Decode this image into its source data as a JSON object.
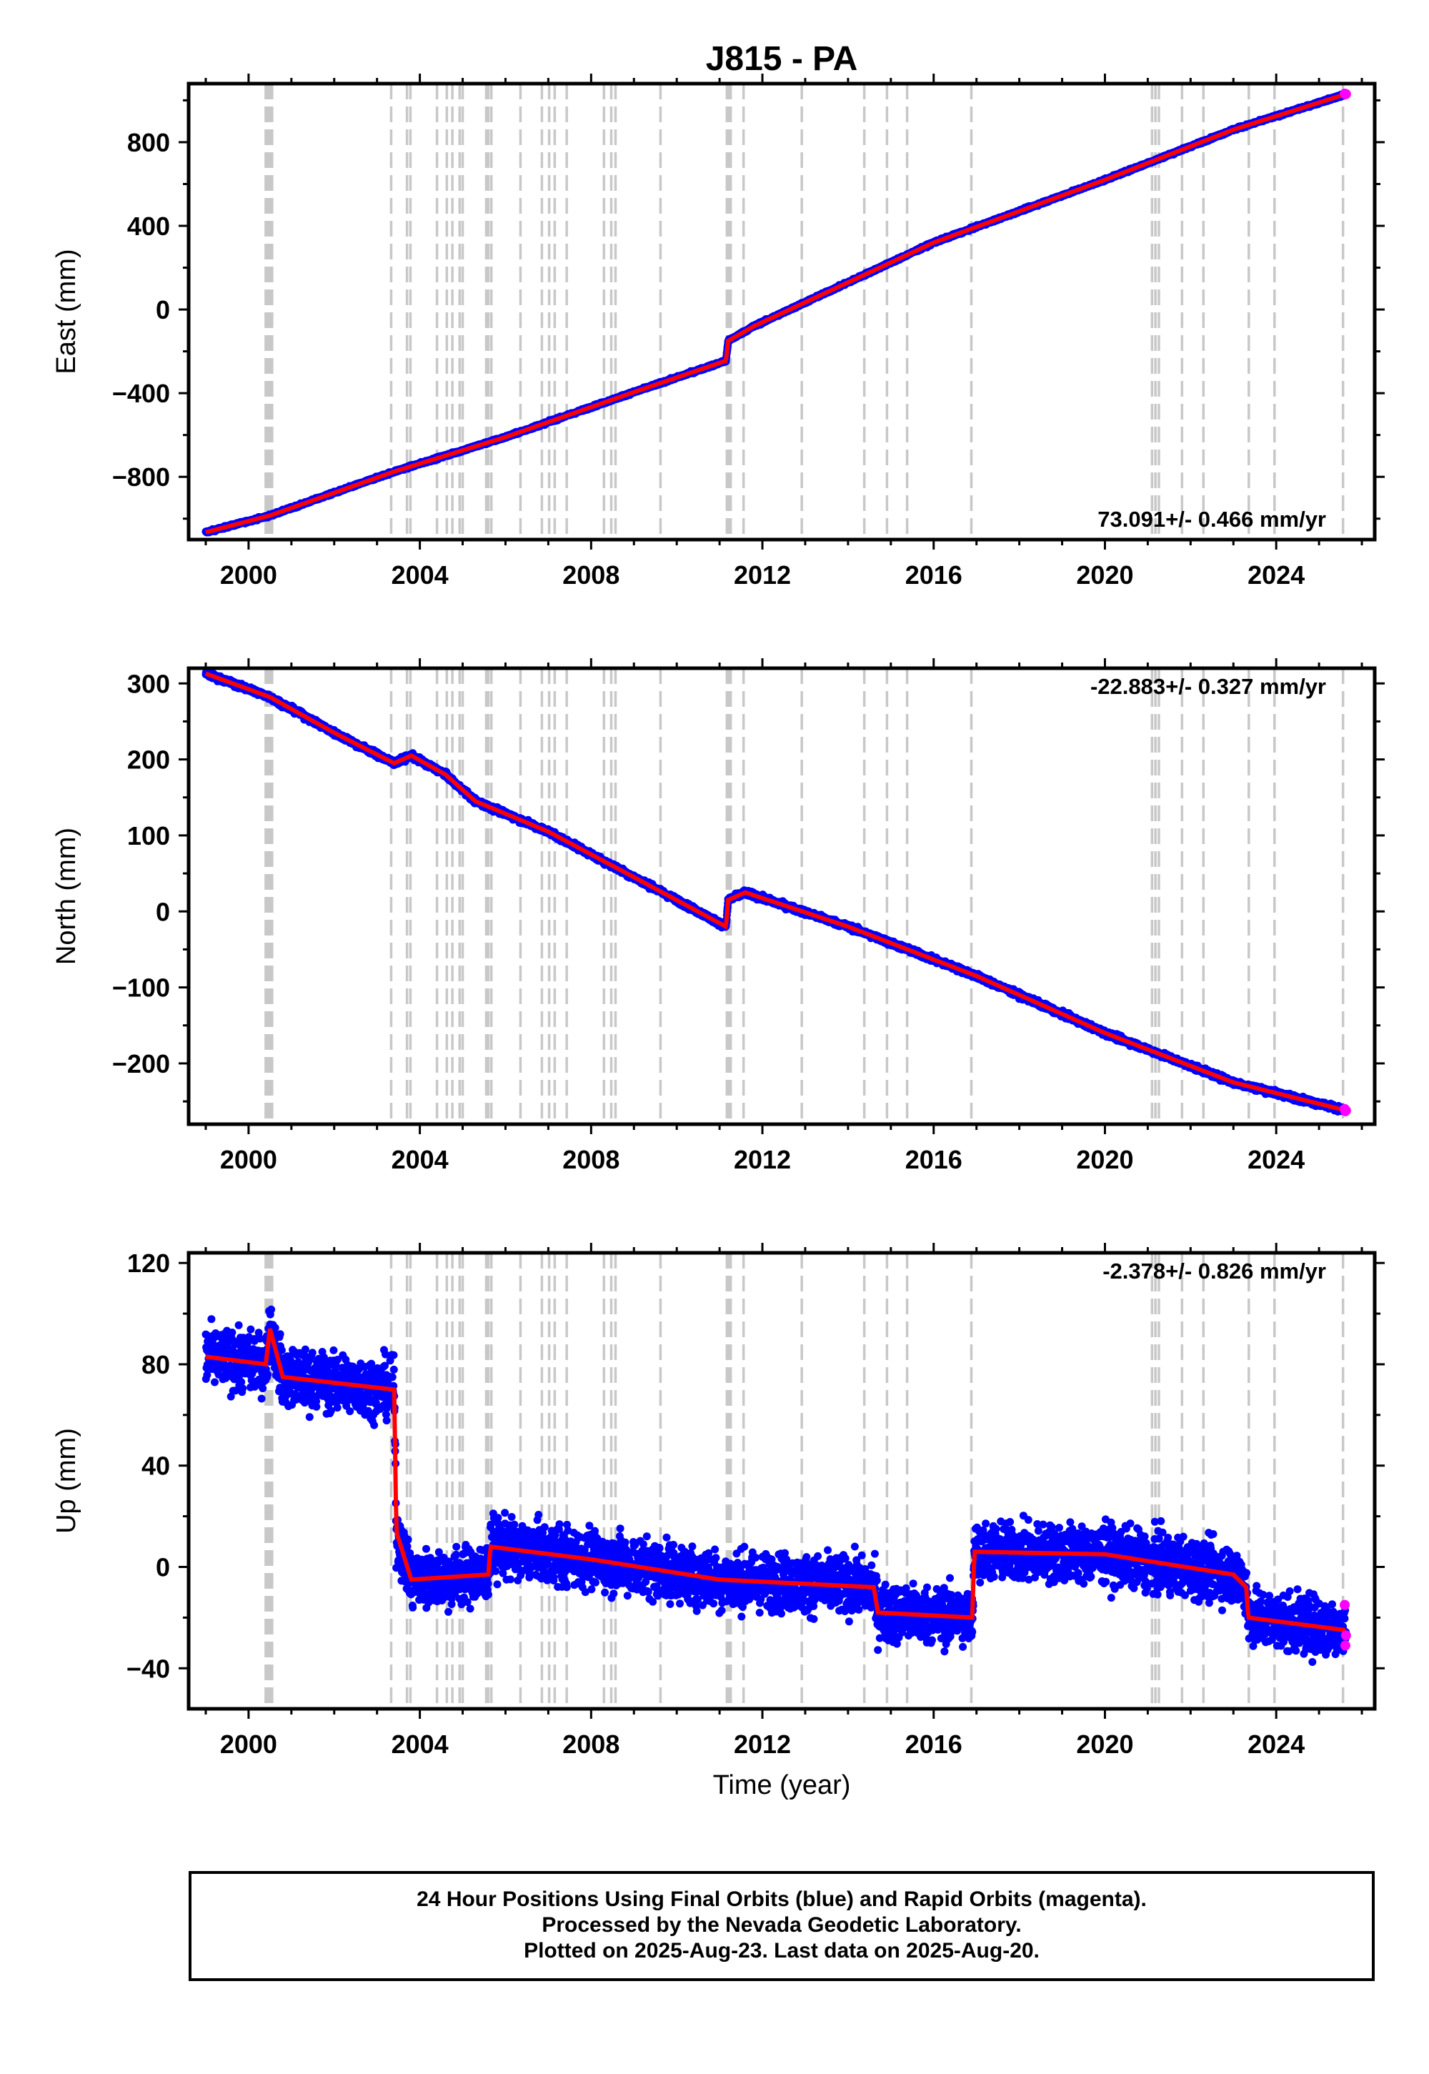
{
  "title": "J815 - PA",
  "xlabel": "Time (year)",
  "colors": {
    "final": "#0000ff",
    "rapid": "#ff00ff",
    "model": "#ff0000",
    "steps": "#c8c8c8"
  },
  "caption": [
    "24 Hour Positions Using Final Orbits (blue) and Rapid Orbits (magenta).",
    "Processed by the Nevada Geodetic Laboratory.",
    "Plotted on 2025-Aug-23. Last data on 2025-Aug-20."
  ],
  "chart_data": [
    {
      "type": "scatter",
      "ylabel": "East (mm)",
      "rate_text": "73.091+/- 0.466 mm/yr",
      "rate_position": "bottom-right",
      "xlim": [
        1998.6,
        2026.3
      ],
      "ylim": [
        -1100,
        1080
      ],
      "xticks": [
        2000,
        2004,
        2008,
        2012,
        2016,
        2020,
        2024
      ],
      "yticks": [
        -800,
        -400,
        0,
        400,
        800
      ],
      "series": [
        {
          "values": [
            [
              1999.0,
              -1065
            ],
            [
              2000.5,
              -985
            ],
            [
              2003.4,
              -775
            ],
            [
              2006.0,
              -610
            ],
            [
              2009.0,
              -395
            ],
            [
              2011.15,
              -245
            ],
            [
              2011.2,
              -150
            ],
            [
              2011.8,
              -80
            ],
            [
              2016.0,
              320
            ],
            [
              2020.0,
              620
            ],
            [
              2023.0,
              860
            ],
            [
              2025.63,
              1030
            ]
          ]
        }
      ]
    },
    {
      "type": "scatter",
      "ylabel": "North (mm)",
      "rate_text": "-22.883+/- 0.327 mm/yr",
      "rate_position": "top-right",
      "xlim": [
        1998.6,
        2026.3
      ],
      "ylim": [
        -280,
        320
      ],
      "xticks": [
        2000,
        2004,
        2008,
        2012,
        2016,
        2020,
        2024
      ],
      "yticks": [
        -200,
        -100,
        0,
        100,
        200,
        300
      ],
      "series": [
        {
          "values": [
            [
              1999.0,
              313
            ],
            [
              2000.5,
              282
            ],
            [
              2002.0,
              235
            ],
            [
              2003.4,
              195
            ],
            [
              2003.8,
              205
            ],
            [
              2004.6,
              180
            ],
            [
              2005.3,
              145
            ],
            [
              2007.0,
              105
            ],
            [
              2009.0,
              45
            ],
            [
              2011.15,
              -20
            ],
            [
              2011.2,
              15
            ],
            [
              2011.6,
              25
            ],
            [
              2014.0,
              -20
            ],
            [
              2017.0,
              -85
            ],
            [
              2020.0,
              -160
            ],
            [
              2023.0,
              -225
            ],
            [
              2025.63,
              -262
            ]
          ]
        }
      ]
    },
    {
      "type": "scatter",
      "ylabel": "Up (mm)",
      "rate_text": "-2.378+/- 0.826 mm/yr",
      "rate_position": "top-right",
      "xlim": [
        1998.6,
        2026.3
      ],
      "ylim": [
        -56,
        124
      ],
      "xticks": [
        2000,
        2004,
        2008,
        2012,
        2016,
        2020,
        2024
      ],
      "yticks": [
        -40,
        0,
        40,
        80,
        120
      ],
      "series": [
        {
          "values": [
            [
              1999.0,
              83
            ],
            [
              2000.4,
              80
            ],
            [
              2000.5,
              94
            ],
            [
              2000.8,
              75
            ],
            [
              2003.4,
              70
            ],
            [
              2003.45,
              14
            ],
            [
              2003.8,
              -5
            ],
            [
              2005.6,
              -3
            ],
            [
              2005.65,
              8
            ],
            [
              2008.0,
              3
            ],
            [
              2011.0,
              -5
            ],
            [
              2014.6,
              -8
            ],
            [
              2014.7,
              -18
            ],
            [
              2016.9,
              -20
            ],
            [
              2016.95,
              6
            ],
            [
              2020.0,
              5
            ],
            [
              2023.0,
              -3
            ],
            [
              2023.3,
              -8
            ],
            [
              2023.35,
              -20
            ],
            [
              2025.63,
              -25
            ]
          ]
        }
      ]
    }
  ],
  "step_lines": [
    2000.4,
    2000.45,
    2000.5,
    2000.55,
    2003.33,
    2003.7,
    2003.78,
    2004.4,
    2004.63,
    2004.76,
    2004.93,
    2005.0,
    2005.55,
    2005.6,
    2005.67,
    2006.35,
    2006.85,
    2007.02,
    2007.15,
    2007.43,
    2008.3,
    2008.47,
    2008.57,
    2009.62,
    2011.17,
    2011.2,
    2011.23,
    2011.26,
    2011.56,
    2012.92,
    2014.38,
    2014.91,
    2015.38,
    2016.88,
    2021.1,
    2021.18,
    2021.26,
    2021.8,
    2022.3,
    2023.36,
    2023.96,
    2025.56
  ]
}
